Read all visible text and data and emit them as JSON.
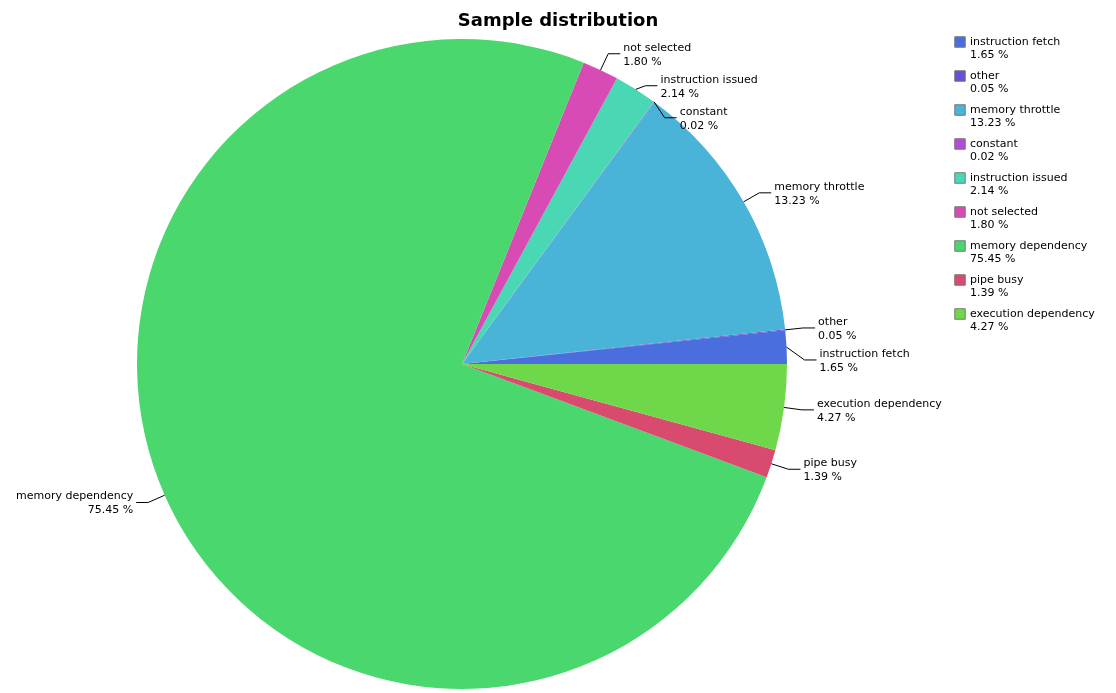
{
  "chart_data": {
    "type": "pie",
    "title": "Sample distribution",
    "categories": [
      "instruction fetch",
      "other",
      "memory throttle",
      "constant",
      "instruction issued",
      "not selected",
      "memory dependency",
      "pipe busy",
      "execution dependency"
    ],
    "values": [
      1.65,
      0.05,
      13.23,
      0.02,
      2.14,
      1.8,
      75.45,
      1.39,
      4.27
    ],
    "value_labels": [
      "1.65 %",
      "0.05 %",
      "13.23 %",
      "0.02 %",
      "2.14 %",
      "1.80 %",
      "75.45 %",
      "1.39 %",
      "4.27 %"
    ],
    "colors": [
      "#4a6ede",
      "#6a4fd6",
      "#4ab4d8",
      "#b44ad8",
      "#4ad8b4",
      "#d84ab4",
      "#4ad86e",
      "#d84a6e",
      "#6ed84a"
    ],
    "legend": "right"
  }
}
